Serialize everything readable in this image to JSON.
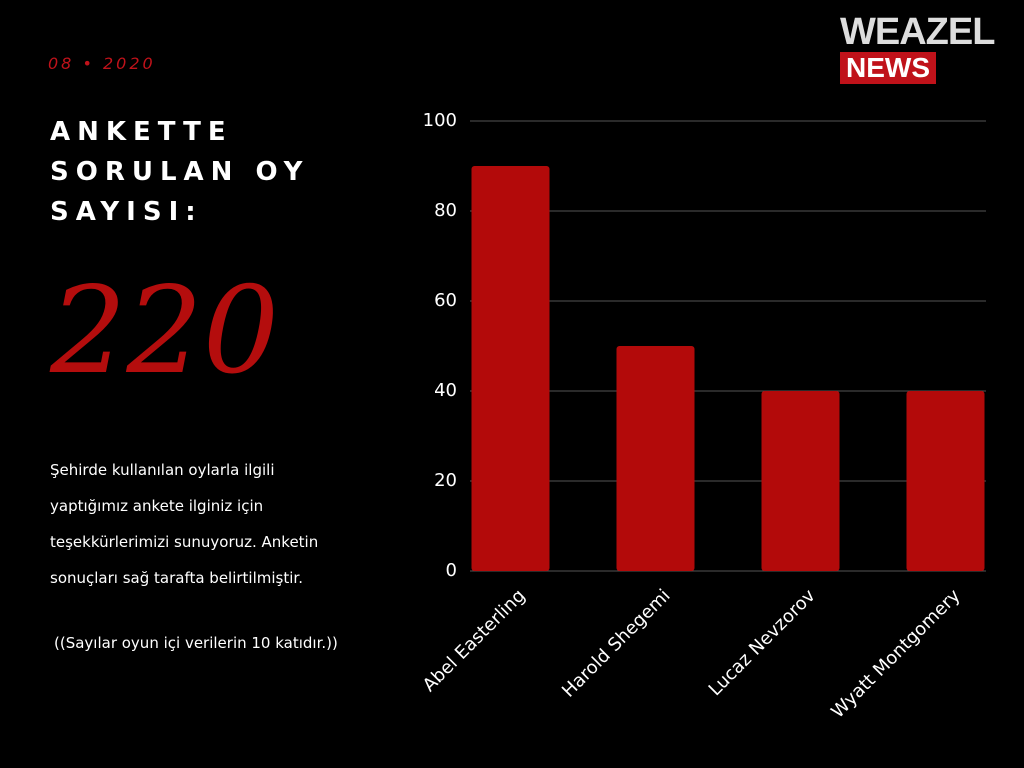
{
  "date": "08 • 2020",
  "heading": [
    "ANKETTE",
    "SORULAN OY",
    "SAYISI:"
  ],
  "total": 220,
  "description": [
    "Şehirde kullanılan oylarla ilgili",
    "yaptığımız ankete ilginiz için",
    "teşekkürlerimizi sunuyoruz. Anketin",
    "sonuçları sağ tarafta belirtilmiştir."
  ],
  "note": "((Sayılar oyun içi verilerin 10 katıdır.))",
  "logo": {
    "top": "WEAZEL",
    "bottom": "NEWS"
  },
  "chart_data": {
    "type": "bar",
    "categories": [
      "Abel Easterling",
      "Harold Shegemi",
      "Lucaz Nevzorov",
      "Wyatt Montgomery"
    ],
    "values": [
      90,
      50,
      40,
      40
    ],
    "color": "#b30a0a",
    "ylim": [
      0,
      100
    ],
    "yticks": [
      0,
      20,
      40,
      60,
      80,
      100
    ],
    "grid": true
  }
}
